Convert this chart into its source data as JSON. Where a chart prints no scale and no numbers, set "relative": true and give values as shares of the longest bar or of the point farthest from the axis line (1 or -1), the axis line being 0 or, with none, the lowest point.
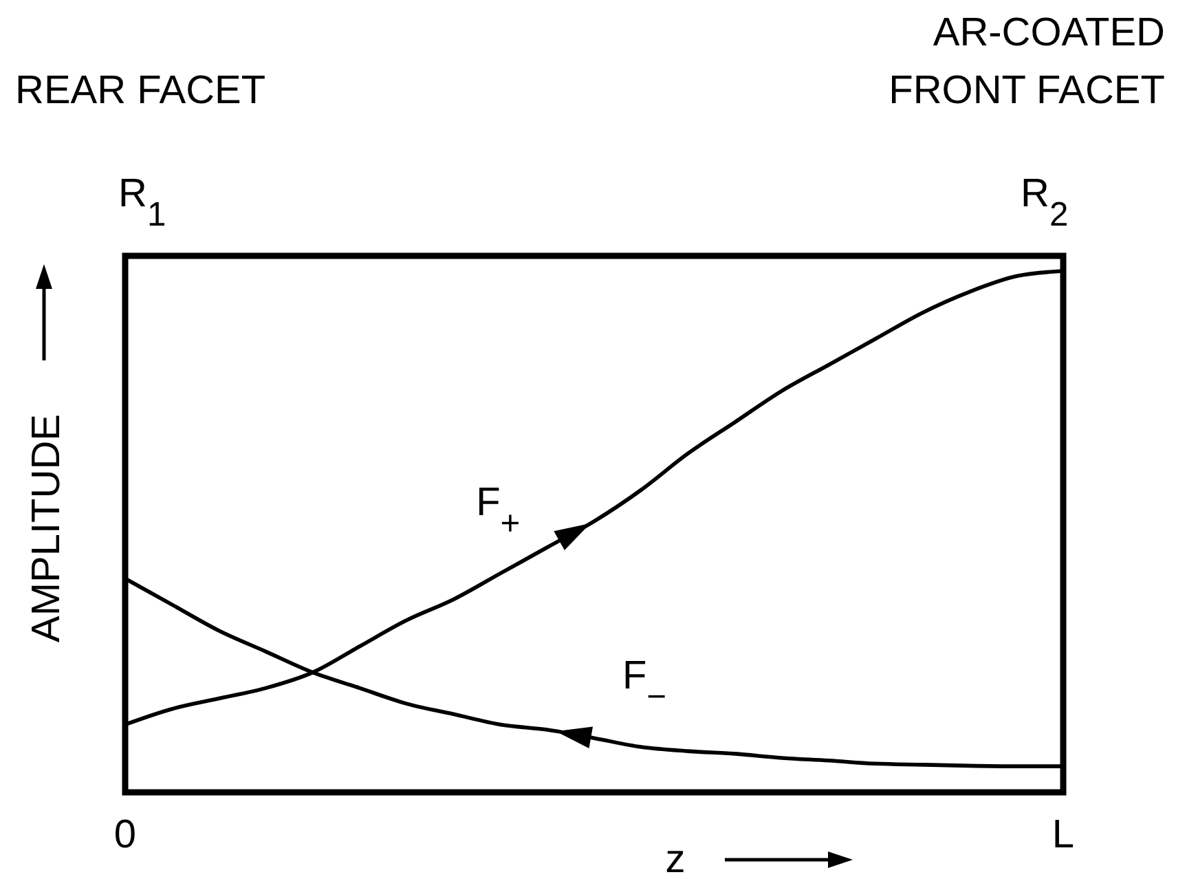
{
  "chart_data": {
    "type": "line",
    "relative": true,
    "xlabel": "z",
    "ylabel": "AMPLITUDE",
    "line_style": "solid",
    "categories": [
      "0",
      null,
      null,
      null,
      null,
      null,
      null,
      null,
      null,
      null,
      null,
      null,
      null,
      null,
      null,
      null,
      null,
      null,
      null,
      null,
      "L"
    ],
    "annotations": [
      "REAR FACET",
      "AR-COATED\nFRONT FACET",
      "R$_{1}$",
      "R$_{2}$"
    ],
    "series": [
      {
        "name": "F$_{+}$",
        "color": "#000000",
        "values": [
          0.13,
          0.16,
          0.18,
          0.2,
          0.23,
          0.28,
          0.33,
          0.37,
          0.42,
          0.47,
          0.52,
          0.58,
          0.65,
          0.71,
          0.77,
          0.82,
          0.87,
          0.92,
          0.96,
          0.99,
          1
        ]
      },
      {
        "name": "F$_{−}$",
        "color": "#000000",
        "values": [
          0.41,
          0.36,
          0.31,
          0.27,
          0.23,
          0.2,
          0.17,
          0.15,
          0.13,
          0.12,
          0.104,
          0.087,
          0.079,
          0.074,
          0.066,
          0.061,
          0.055,
          0.053,
          0.051,
          0.05,
          0.05
        ]
      }
    ]
  }
}
